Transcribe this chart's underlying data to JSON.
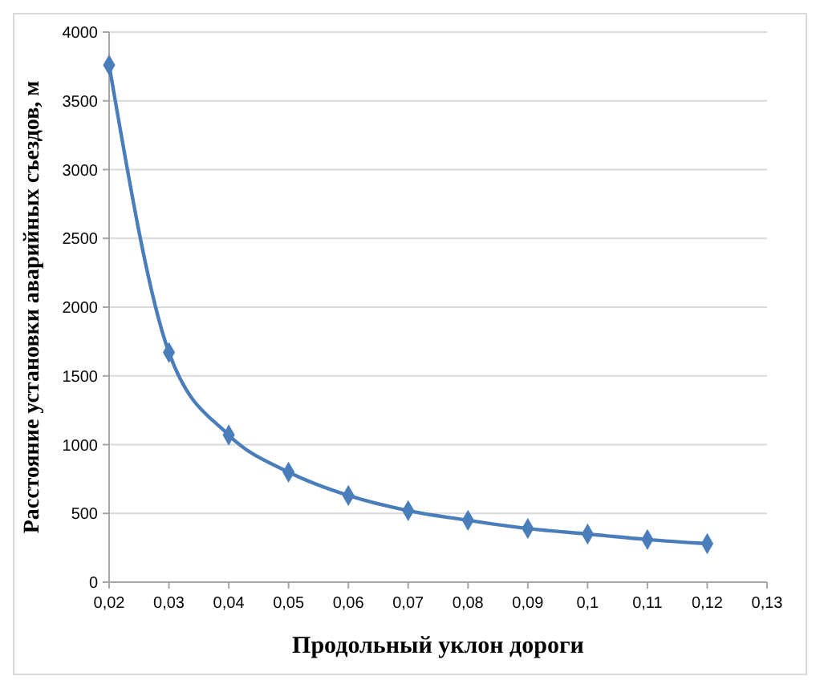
{
  "chart_data": {
    "type": "line",
    "xlabel": "Продольный уклон дороги",
    "ylabel": "Расстояние установки аварийных съездов, м",
    "x": [
      0.02,
      0.03,
      0.04,
      0.05,
      0.06,
      0.07,
      0.08,
      0.09,
      0.1,
      0.11,
      0.12
    ],
    "series": [
      {
        "color": "#4a7ebb",
        "values": [
          3760,
          1670,
          1070,
          800,
          630,
          520,
          450,
          390,
          350,
          310,
          280
        ]
      }
    ],
    "xlim": [
      0.02,
      0.13
    ],
    "xticks": [
      {
        "value": 0.02,
        "label": "0,02"
      },
      {
        "value": 0.03,
        "label": "0,03"
      },
      {
        "value": 0.04,
        "label": "0,04"
      },
      {
        "value": 0.05,
        "label": "0,05"
      },
      {
        "value": 0.06,
        "label": "0,06"
      },
      {
        "value": 0.07,
        "label": "0,07"
      },
      {
        "value": 0.08,
        "label": "0,08"
      },
      {
        "value": 0.09,
        "label": "0,09"
      },
      {
        "value": 0.1,
        "label": "0,1"
      },
      {
        "value": 0.11,
        "label": "0,11"
      },
      {
        "value": 0.12,
        "label": "0,12"
      },
      {
        "value": 0.13,
        "label": "0,13"
      }
    ],
    "ylim": [
      0,
      4000
    ],
    "yticks": [
      0,
      500,
      1000,
      1500,
      2000,
      2500,
      3000,
      3500,
      4000
    ],
    "grid": "y",
    "marker": "diamond",
    "line_style": "solid"
  }
}
